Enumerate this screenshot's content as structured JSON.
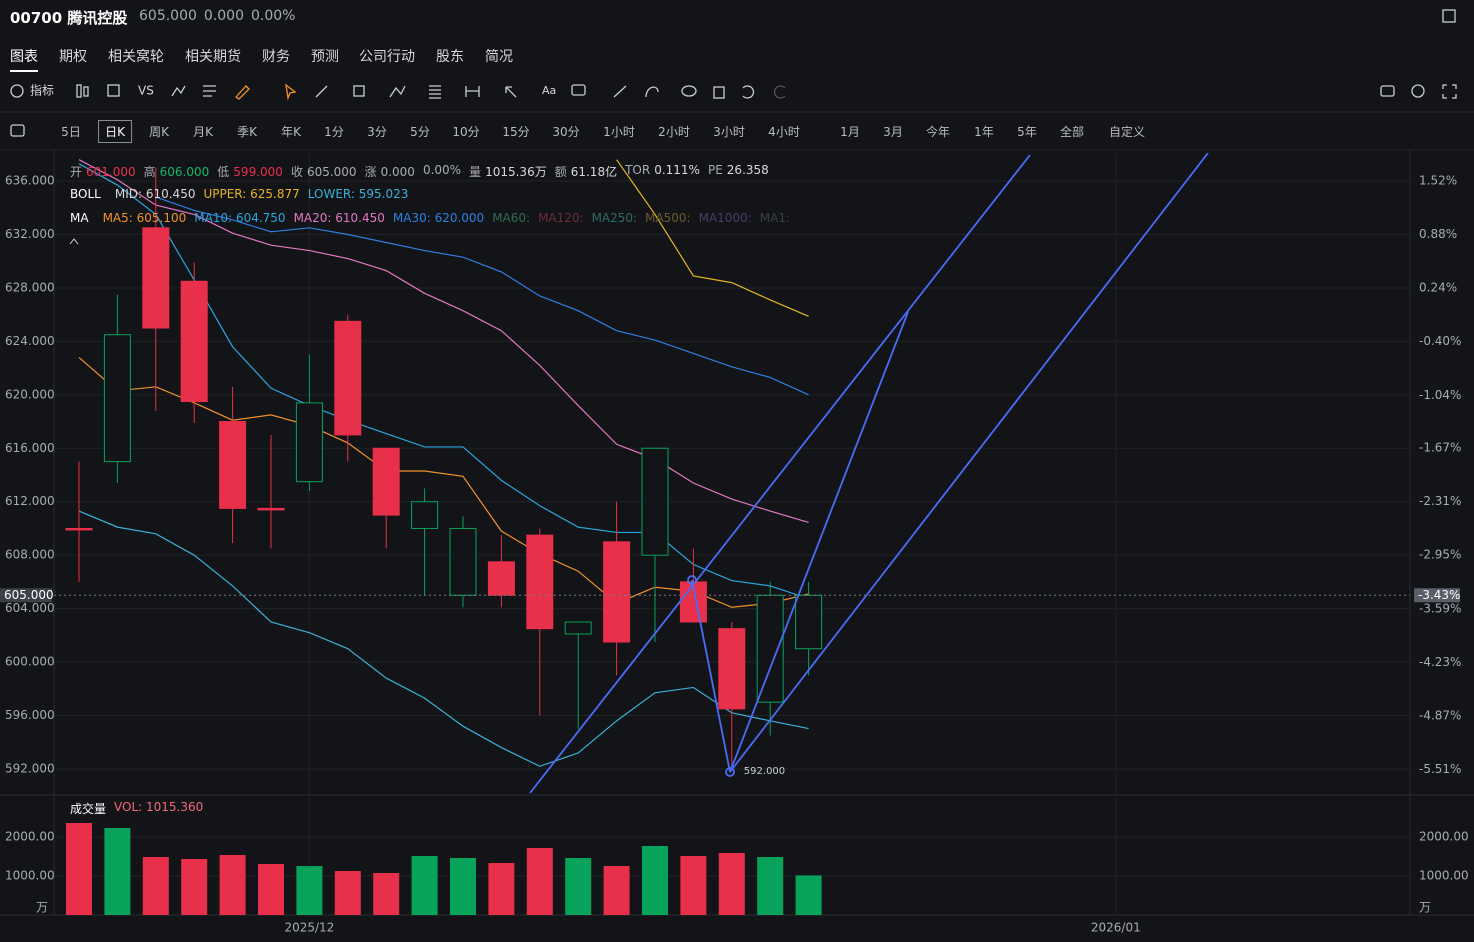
{
  "header": {
    "symbol": "00700 腾讯控股",
    "price": "605.000",
    "change": "0.000",
    "change_pct": "0.00%"
  },
  "tabs": [
    "图表",
    "期权",
    "相关窝轮",
    "相关期货",
    "财务",
    "预测",
    "公司行动",
    "股东",
    "简况"
  ],
  "toolbar": {
    "indicator": "指标",
    "compare": "VS",
    "text": "Aa"
  },
  "periods": [
    "5日",
    "日K",
    "周K",
    "月K",
    "季K",
    "年K",
    "1分",
    "3分",
    "5分",
    "10分",
    "15分",
    "30分",
    "1小时",
    "2小时",
    "3小时",
    "4小时"
  ],
  "ranges": [
    "1月",
    "3月",
    "今年",
    "1年",
    "5年",
    "全部",
    "自定义"
  ],
  "quote_row": [
    {
      "label": "开",
      "value": "601.000",
      "color": "#e8304a"
    },
    {
      "label": "高",
      "value": "606.000",
      "color": "#12b866"
    },
    {
      "label": "低",
      "value": "599.000",
      "color": "#e8304a"
    },
    {
      "label": "收",
      "value": "605.000",
      "color": "#a8abb3"
    },
    {
      "label": "涨",
      "value": "0.000",
      "color": "#a8abb3"
    },
    {
      "label": "",
      "value": "0.00%",
      "color": "#a8abb3"
    },
    {
      "label": "量",
      "value": "1015.36万",
      "color": "#d6d8de"
    },
    {
      "label": "额",
      "value": "61.18亿",
      "color": "#d6d8de"
    },
    {
      "label": "TOR",
      "value": "0.111%",
      "color": "#d6d8de"
    },
    {
      "label": "PE",
      "value": "26.358",
      "color": "#d6d8de"
    }
  ],
  "chart_data": {
    "type": "candlestick",
    "up_color": "#07a35a",
    "down_color": "#e8304a",
    "open": [
      610,
      615,
      632.5,
      628.5,
      618,
      611.5,
      613.5,
      625.5,
      616,
      610,
      605,
      607.5,
      609.5,
      602.1,
      609,
      608,
      606,
      602.5,
      597,
      601
    ],
    "high": [
      615,
      627.5,
      637,
      629.9,
      620.6,
      617,
      623,
      626,
      616,
      613,
      610.9,
      609.5,
      610,
      603,
      612,
      616,
      608.5,
      603,
      606,
      606
    ],
    "low": [
      606,
      613.4,
      618.8,
      617.9,
      608.9,
      608.5,
      612.8,
      615,
      608.5,
      605,
      604.1,
      604.1,
      596,
      595,
      599,
      601.5,
      603,
      592,
      594.5,
      599
    ],
    "close": [
      610,
      624.5,
      625,
      619.5,
      611.5,
      611.5,
      619.4,
      617,
      611,
      612,
      610,
      605,
      602.5,
      603,
      601.5,
      616,
      603,
      596.5,
      605,
      605
    ],
    "ylim": [
      590.2,
      637.95
    ],
    "yticks": [
      {
        "value": 636,
        "label": "636.000"
      },
      {
        "value": 632,
        "label": "632.000"
      },
      {
        "value": 628,
        "label": "628.000"
      },
      {
        "value": 624,
        "label": "624.000"
      },
      {
        "value": 620,
        "label": "620.000"
      },
      {
        "value": 616,
        "label": "616.000"
      },
      {
        "value": 612,
        "label": "612.000"
      },
      {
        "value": 608,
        "label": "608.000"
      },
      {
        "value": 604,
        "label": "604.000"
      },
      {
        "value": 600,
        "label": "600.000"
      },
      {
        "value": 596,
        "label": "596.000"
      },
      {
        "value": 592,
        "label": "592.000"
      }
    ],
    "y2lim": [
      -5.79,
      1.83
    ],
    "y2ticks": [
      {
        "value": 1.52,
        "label": "1.52%"
      },
      {
        "value": 0.88,
        "label": "0.88%"
      },
      {
        "value": 0.24,
        "label": "0.24%"
      },
      {
        "value": -0.4,
        "label": "-0.40%"
      },
      {
        "value": -1.04,
        "label": "-1.04%"
      },
      {
        "value": -1.67,
        "label": "-1.67%"
      },
      {
        "value": -2.31,
        "label": "-2.31%"
      },
      {
        "value": -2.95,
        "label": "-2.95%"
      },
      {
        "value": -3.59,
        "label": "-3.59%"
      },
      {
        "value": -4.23,
        "label": "-4.23%"
      },
      {
        "value": -4.87,
        "label": "-4.87%"
      },
      {
        "value": -5.51,
        "label": "-5.51%"
      }
    ],
    "xticks": [
      {
        "value": 6,
        "label": "2025/12"
      },
      {
        "value": 27,
        "label": "2026/01"
      }
    ],
    "grid": true,
    "ma_title": "MA",
    "series": [
      {
        "label": "MA5: 605.100",
        "color": "#f0922b",
        "values": [
          622.8,
          620.3,
          620.6,
          619.4,
          618.1,
          618.5,
          617.7,
          616.4,
          614.3,
          614.3,
          613.9,
          609.8,
          608.1,
          606.8,
          604.4,
          605.6,
          605.3,
          604.1,
          604.4,
          605.1
        ]
      },
      {
        "label": "MA10: 604.750",
        "color": "#29a6df",
        "values": [
          637.3,
          635.7,
          633.5,
          628.6,
          623.6,
          620.5,
          619.2,
          618.1,
          617.1,
          616.1,
          616.1,
          613.6,
          611.7,
          610.1,
          609.7,
          609.7,
          607.3,
          606.1,
          605.7,
          604.75
        ]
      },
      {
        "label": "MA20: 610.450",
        "color": "#e377c2",
        "values": [
          637.6,
          636.1,
          634.2,
          633.5,
          632.1,
          631.2,
          630.8,
          630.2,
          629.3,
          627.6,
          626.3,
          624.8,
          622.2,
          619.2,
          616.3,
          615.2,
          613.4,
          612.2,
          611.3,
          610.45
        ]
      },
      {
        "label": "MA30: 620.000",
        "color": "#2f7fe0",
        "values": [
          null,
          null,
          634.8,
          633.8,
          633.1,
          632.2,
          632.5,
          632.0,
          631.4,
          630.8,
          630.3,
          629.2,
          627.4,
          626.3,
          624.8,
          624.1,
          623.1,
          622.1,
          621.3,
          620.0
        ]
      }
    ],
    "ma_inactive": [
      {
        "label": "MA60:",
        "color": "#2f6b4f"
      },
      {
        "label": "MA120:",
        "color": "#6b2f3c"
      },
      {
        "label": "MA250:",
        "color": "#2f6b66"
      },
      {
        "label": "MA500:",
        "color": "#6b5a2f"
      },
      {
        "label": "MA1000:",
        "color": "#4b3a6b"
      },
      {
        "label": "MA1:",
        "color": "#3a3d48"
      }
    ],
    "boll": {
      "title": "BOLL",
      "mid_label": "MID: 610.450",
      "series": [
        {
          "label": "UPPER: 625.877",
          "color": "#e6b422",
          "values": [
            null,
            null,
            null,
            null,
            null,
            null,
            null,
            null,
            null,
            null,
            null,
            null,
            null,
            null,
            637.6,
            633.5,
            628.9,
            628.4,
            627.1,
            625.877
          ]
        },
        {
          "label": "LOWER: 595.023",
          "color": "#3bb0d8",
          "values": [
            611.3,
            610.1,
            609.6,
            608.0,
            605.7,
            603.0,
            602.2,
            601.0,
            598.8,
            597.3,
            595.2,
            593.6,
            592.2,
            593.2,
            595.6,
            597.7,
            598.1,
            596.2,
            595.6,
            595.023
          ]
        }
      ]
    },
    "price_line": {
      "value": 605,
      "label": "605.000",
      "pct": "-3.43%"
    },
    "low_annotation": "592.000",
    "volume": {
      "title": "成交量",
      "label": "VOL: 1015.360",
      "unit": "万",
      "values": [
        2359,
        2231,
        1487,
        1436,
        1538,
        1308,
        1256,
        1128,
        1077,
        1513,
        1462,
        1333,
        1718,
        1462,
        1256,
        1769,
        1513,
        1590,
        1487,
        1015.36
      ],
      "ylim": [
        0,
        3026
      ],
      "yticks": [
        {
          "value": 2000,
          "label": "2000.00"
        },
        {
          "value": 1000,
          "label": "1000.00"
        }
      ]
    }
  }
}
